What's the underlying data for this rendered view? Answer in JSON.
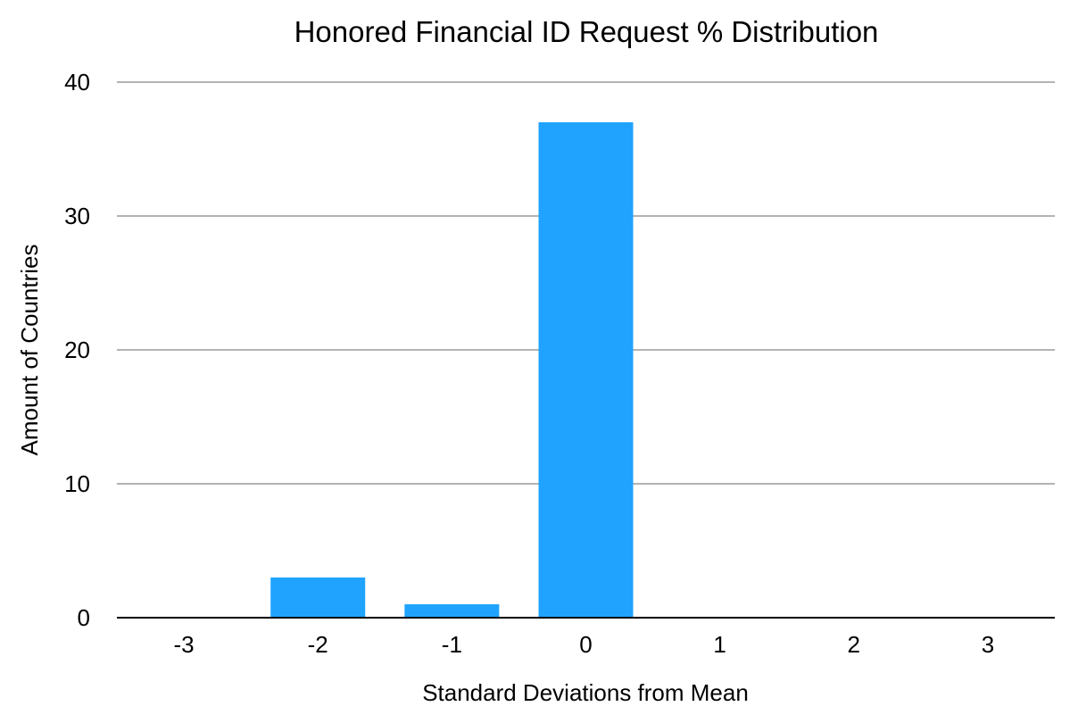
{
  "chart_data": {
    "type": "bar",
    "title": "Honored Financial ID Request % Distribution",
    "xlabel": "Standard Deviations from Mean",
    "ylabel": "Amount of Countries",
    "categories": [
      "-3",
      "-2",
      "-1",
      "0",
      "1",
      "2",
      "3"
    ],
    "values": [
      0,
      3,
      1,
      37,
      0,
      0,
      0
    ],
    "ylim": [
      0,
      40
    ],
    "yticks": [
      "0",
      "10",
      "20",
      "30",
      "40"
    ],
    "grid": true,
    "legend": "none",
    "colors": {
      "bar": "#1fa3ff",
      "grid": "#b3b3b3",
      "axis": "#000000"
    }
  }
}
